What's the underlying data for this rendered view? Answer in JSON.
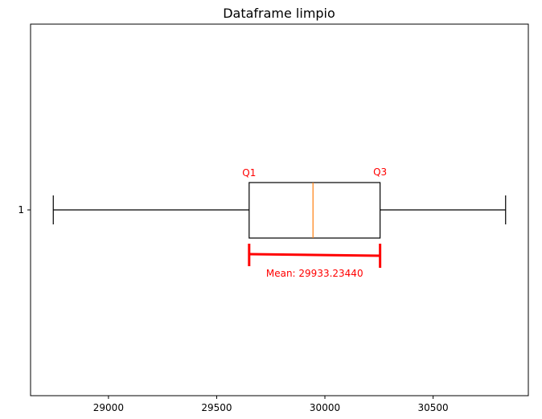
{
  "chart_data": {
    "type": "boxplot",
    "orientation": "horizontal",
    "title": "Dataframe limpio",
    "xlabel": "",
    "ylabel": "",
    "xlim": [
      28640,
      30940
    ],
    "x_ticks": [
      29000,
      29500,
      30000,
      30500
    ],
    "y_ticks": [
      "1"
    ],
    "grid": false,
    "series": [
      {
        "label": "1",
        "whisker_low": 28745,
        "q1": 29650,
        "median": 29945,
        "q3": 30255,
        "whisker_high": 30835
      }
    ],
    "annotations": {
      "q1_label": "Q1",
      "q3_label": "Q3",
      "mean_label": "Mean: 29933.23440"
    },
    "colors": {
      "box": "#000000",
      "median": "#ff7f0e",
      "annotation": "#ff0000"
    }
  }
}
